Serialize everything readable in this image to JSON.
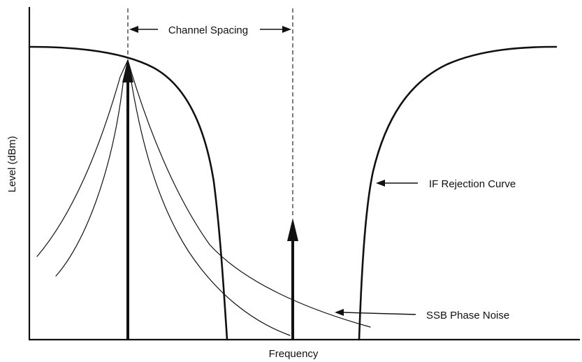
{
  "labels": {
    "channel_spacing": "Channel Spacing",
    "if_rejection_curve": "IF Rejection Curve",
    "ssb_phase_noise": "SSB Phase Noise",
    "y_axis": "Level (dBm)",
    "x_axis": "Frequency"
  },
  "colors": {
    "ink": "#111111",
    "background": "#ffffff"
  }
}
